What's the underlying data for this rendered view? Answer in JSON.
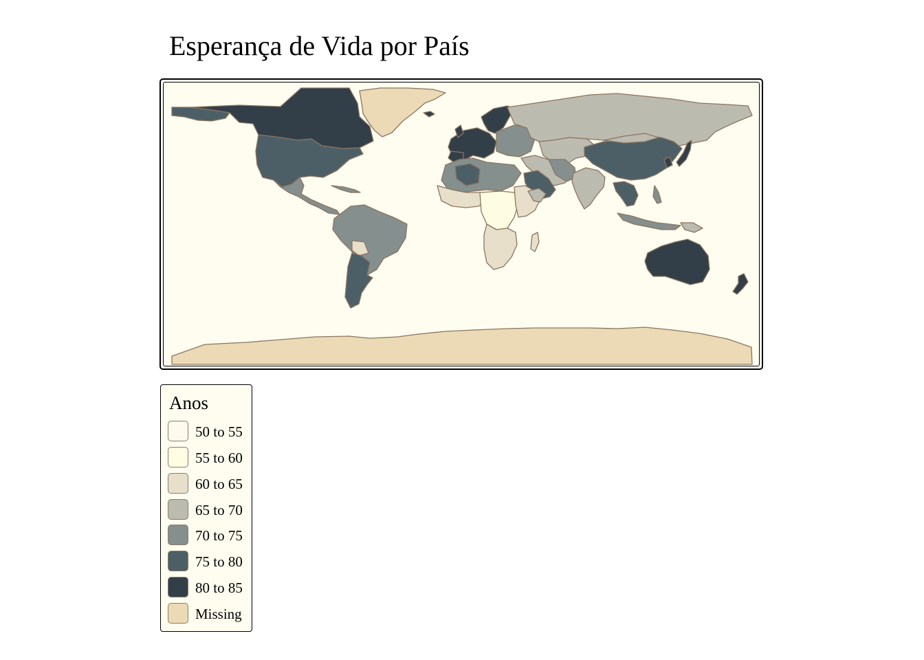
{
  "title": "Esperança de Vida por País",
  "legend": {
    "title": "Anos",
    "items": [
      {
        "label": "50 to 55",
        "color": "#fefbee"
      },
      {
        "label": "55 to 60",
        "color": "#fefce3"
      },
      {
        "label": "60 to 65",
        "color": "#e8dfcb"
      },
      {
        "label": "65 to 70",
        "color": "#bcbbb0"
      },
      {
        "label": "70 to 75",
        "color": "#858f8e"
      },
      {
        "label": "75 to 80",
        "color": "#4d5f66"
      },
      {
        "label": "80 to 85",
        "color": "#333f48"
      },
      {
        "label": "Missing",
        "color": "#ecdab6"
      }
    ]
  },
  "map": {
    "background_color": "#fffdf0",
    "border_color": "#8a7460"
  }
}
